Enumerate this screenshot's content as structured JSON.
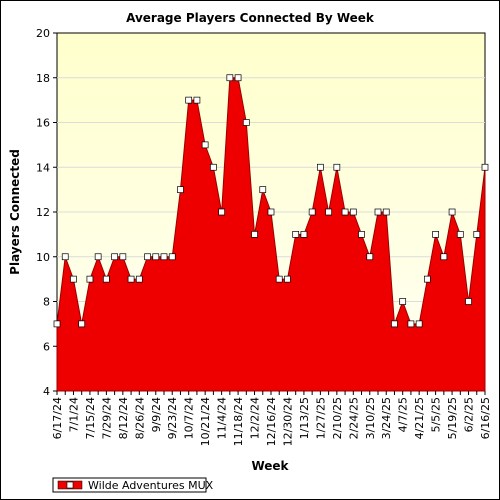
{
  "chart_data": {
    "type": "area",
    "title": "Average Players Connected By Week",
    "xlabel": "Week",
    "ylabel": "Players Connected",
    "ylim": [
      4,
      20
    ],
    "yticks": [
      4,
      6,
      8,
      10,
      12,
      14,
      16,
      18,
      20
    ],
    "x_tick_labels": [
      "6/17/24",
      "7/1/24",
      "7/15/24",
      "7/29/24",
      "8/12/24",
      "8/26/24",
      "9/9/24",
      "9/23/24",
      "10/7/24",
      "10/21/24",
      "11/4/24",
      "11/18/24",
      "12/2/24",
      "12/16/24",
      "12/30/24",
      "1/13/25",
      "1/27/25",
      "2/10/25",
      "2/24/25",
      "3/10/25",
      "3/24/25",
      "4/7/25",
      "4/21/25",
      "5/5/25",
      "5/19/25",
      "6/2/25",
      "6/16/25"
    ],
    "series": [
      {
        "name": "Wilde Adventures MUX",
        "values": [
          7,
          10,
          9,
          7,
          9,
          10,
          9,
          10,
          10,
          9,
          9,
          10,
          10,
          10,
          10,
          13,
          17,
          17,
          15,
          14,
          12,
          18,
          18,
          16,
          11,
          13,
          12,
          9,
          9,
          11,
          11,
          12,
          14,
          12,
          14,
          12,
          12,
          11,
          10,
          12,
          12,
          7,
          8,
          7,
          7,
          9,
          11,
          10,
          12,
          11,
          8,
          11,
          14
        ]
      }
    ],
    "grid": true,
    "legend": "bottom-left",
    "colors": {
      "area_fill": "#ee0000",
      "area_line": "#990000",
      "plot_bg_top": "#ffffcc",
      "plot_bg_bottom": "#fffff5",
      "grid": "#dcdcdc",
      "marker_fill": "#ffffff"
    }
  }
}
